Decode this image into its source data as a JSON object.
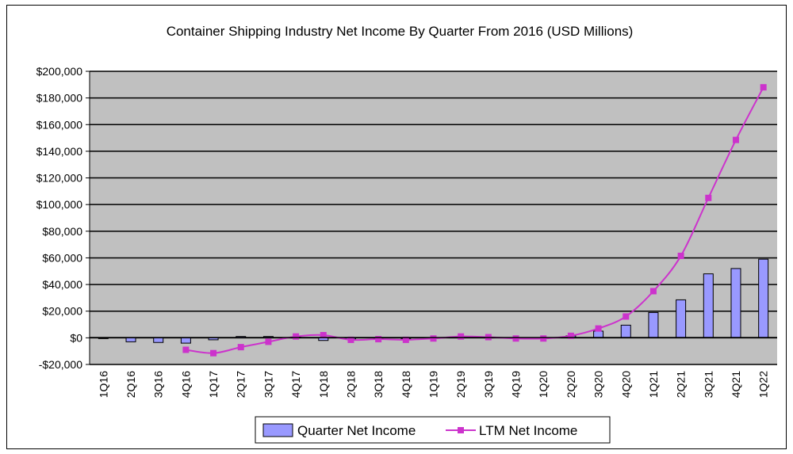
{
  "chart_data": {
    "type": "bar",
    "title": "Container Shipping Industry Net Income By Quarter From 2016 (USD Millions)",
    "xlabel": "",
    "ylabel": "",
    "ylim": [
      -20000,
      200000
    ],
    "yticks": [
      -20000,
      0,
      20000,
      40000,
      60000,
      80000,
      100000,
      120000,
      140000,
      160000,
      180000,
      200000
    ],
    "ytick_labels": [
      "-$20,000",
      "$0",
      "$20,000",
      "$40,000",
      "$60,000",
      "$80,000",
      "$100,000",
      "$120,000",
      "$140,000",
      "$160,000",
      "$180,000",
      "$200,000"
    ],
    "grid": true,
    "legend_position": "bottom",
    "categories": [
      "1Q16",
      "2Q16",
      "3Q16",
      "4Q16",
      "1Q17",
      "2Q17",
      "3Q17",
      "4Q17",
      "1Q18",
      "2Q18",
      "3Q18",
      "4Q18",
      "1Q19",
      "2Q19",
      "3Q19",
      "4Q19",
      "1Q20",
      "2Q20",
      "3Q20",
      "4Q20",
      "1Q21",
      "2Q21",
      "3Q21",
      "4Q21",
      "1Q22"
    ],
    "series": [
      {
        "name": "Quarter Net Income",
        "kind": "bar",
        "color": "#9999ff",
        "values": [
          -500,
          -3000,
          -3500,
          -4000,
          -1500,
          1000,
          1000,
          500,
          -2000,
          -1000,
          -500,
          -500,
          200,
          800,
          500,
          -500,
          -500,
          1500,
          5000,
          9500,
          19000,
          28500,
          48000,
          52000,
          59000
        ]
      },
      {
        "name": "LTM Net Income",
        "kind": "line",
        "color": "#cc33cc",
        "values": [
          null,
          null,
          null,
          -9000,
          -11500,
          -7000,
          -3000,
          1000,
          2000,
          -1500,
          -1000,
          -1500,
          -500,
          1000,
          500,
          -500,
          -500,
          1500,
          7000,
          16000,
          35000,
          61500,
          105000,
          148500,
          188000
        ]
      }
    ]
  }
}
